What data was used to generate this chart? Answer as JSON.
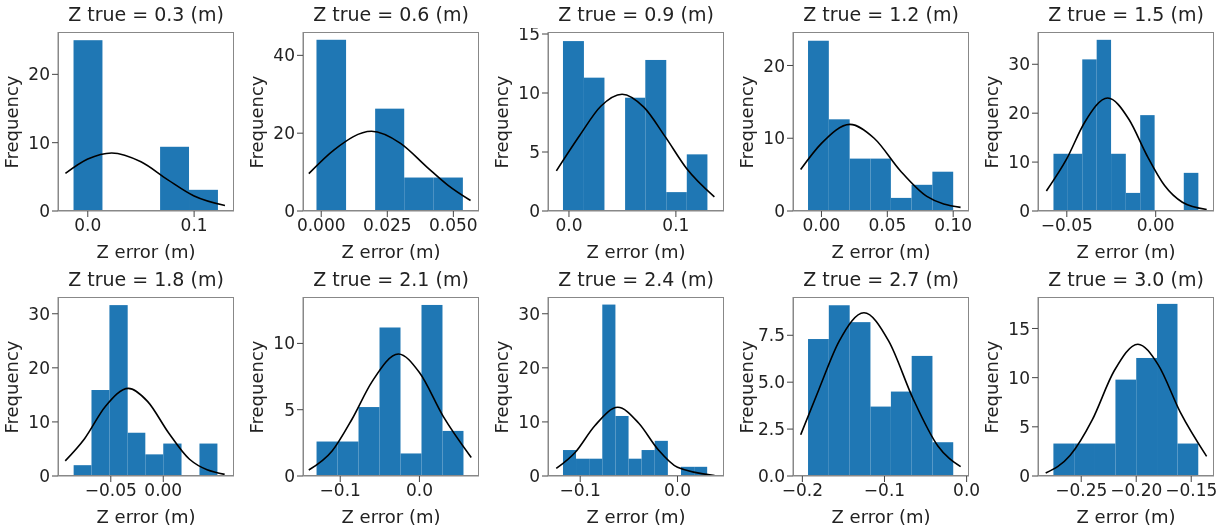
{
  "chart_data": [
    {
      "type": "histogram",
      "title": "Z true = 0.3 (m)",
      "xlabel": "Z error (m)",
      "ylabel": "Frequency",
      "color": "#1f77b4",
      "bins": [
        -0.0134,
        0.0138,
        0.041,
        0.068,
        0.0952,
        0.1224
      ],
      "values": [
        25,
        0,
        0,
        9.4,
        3.1
      ],
      "xlim": [
        -0.028,
        0.1375
      ],
      "ylim": [
        0,
        26.2
      ],
      "xticks": [
        {
          "value": 0,
          "label": "0.0"
        },
        {
          "value": 0.1,
          "label": "0.1"
        }
      ],
      "yticks": [
        0,
        10,
        20
      ],
      "series": [
        {
          "type": "line",
          "color": "#000000",
          "x": [
            -0.021,
            0,
            0.0225,
            0.05,
            0.075,
            0.1,
            0.129
          ],
          "values": [
            5.5,
            7.6,
            8.5,
            7.2,
            4.6,
            2.2,
            0.8
          ]
        }
      ]
    },
    {
      "type": "histogram",
      "title": "Z true = 0.6 (m)",
      "xlabel": "Z error (m)",
      "ylabel": "Frequency",
      "color": "#1f77b4",
      "bins": [
        -0.0018,
        0.0094,
        0.0204,
        0.0314,
        0.0424,
        0.0536
      ],
      "values": [
        44,
        0,
        26.3,
        8.6,
        8.6
      ],
      "xlim": [
        -0.0069,
        0.0597
      ],
      "ylim": [
        0,
        46
      ],
      "xticks": [
        {
          "value": 0,
          "label": "0.000"
        },
        {
          "value": 0.025,
          "label": "0.025"
        },
        {
          "value": 0.05,
          "label": "0.050"
        }
      ],
      "yticks": [
        0,
        20,
        40
      ],
      "series": [
        {
          "type": "line",
          "color": "#000000",
          "x": [
            -0.0047,
            0.005,
            0.019,
            0.03,
            0.04,
            0.048,
            0.0565
          ],
          "values": [
            9.6,
            15.8,
            20.5,
            17.4,
            11.3,
            6.6,
            2.7
          ]
        }
      ]
    },
    {
      "type": "histogram",
      "title": "Z true = 0.9 (m)",
      "xlabel": "Z error (m)",
      "ylabel": "Frequency",
      "color": "#1f77b4",
      "bins": [
        -0.0056,
        0.014,
        0.0332,
        0.0525,
        0.0714,
        0.091,
        0.1102,
        0.1295
      ],
      "values": [
        14.4,
        11.3,
        0,
        9.6,
        12.8,
        1.6,
        4.8
      ],
      "xlim": [
        -0.0196,
        0.145
      ],
      "ylim": [
        0,
        15.17
      ],
      "xticks": [
        {
          "value": 0,
          "label": "0.0"
        },
        {
          "value": 0.1,
          "label": "0.1"
        }
      ],
      "yticks": [
        0,
        5,
        10,
        15
      ],
      "series": [
        {
          "type": "line",
          "color": "#000000",
          "x": [
            -0.0118,
            0.01,
            0.03,
            0.0497,
            0.07,
            0.09,
            0.11,
            0.136
          ],
          "values": [
            3.4,
            6.4,
            8.9,
            9.9,
            8.8,
            6.3,
            3.6,
            1.2
          ]
        }
      ]
    },
    {
      "type": "histogram",
      "title": "Z true = 1.2 (m)",
      "xlabel": "Z error (m)",
      "ylabel": "Frequency",
      "color": "#1f77b4",
      "bins": [
        -0.0102,
        0.0056,
        0.0214,
        0.0372,
        0.0527,
        0.0684,
        0.0842,
        0.1
      ],
      "values": [
        23.4,
        12.6,
        7.2,
        7.2,
        1.8,
        3.6,
        5.4
      ],
      "xlim": [
        -0.0216,
        0.112
      ],
      "ylim": [
        0,
        24.6
      ],
      "xticks": [
        {
          "value": 0,
          "label": "0.00"
        },
        {
          "value": 0.05,
          "label": "0.05"
        },
        {
          "value": 0.1,
          "label": "0.10"
        }
      ],
      "yticks": [
        0,
        10,
        20
      ],
      "series": [
        {
          "type": "line",
          "color": "#000000",
          "x": [
            -0.0158,
            0,
            0.0216,
            0.04,
            0.06,
            0.08,
            0.1056
          ],
          "values": [
            5.7,
            9.3,
            11.9,
            10,
            5.5,
            2,
            0.5
          ]
        }
      ]
    },
    {
      "type": "histogram",
      "title": "Z true = 1.5 (m)",
      "xlabel": "Z error (m)",
      "ylabel": "Frequency",
      "color": "#1f77b4",
      "bins": [
        -0.0575,
        -0.0494,
        -0.0413,
        -0.0332,
        -0.0251,
        -0.0168,
        -0.0087,
        -0.0006,
        0.0075,
        0.0158,
        0.024
      ],
      "values": [
        11.7,
        11.7,
        31,
        35,
        11.7,
        3.7,
        19.6,
        0,
        0,
        7.8
      ],
      "xlim": [
        -0.0662,
        0.0328
      ],
      "ylim": [
        0,
        36.6
      ],
      "xticks": [
        {
          "value": -0.05,
          "label": "−0.05"
        },
        {
          "value": 0,
          "label": "0.00"
        }
      ],
      "yticks": [
        0,
        10,
        20,
        30
      ],
      "series": [
        {
          "type": "line",
          "color": "#000000",
          "x": [
            -0.0615,
            -0.05,
            -0.04,
            -0.027,
            -0.015,
            -0.005,
            0.005,
            0.015,
            0.0287
          ],
          "values": [
            4.1,
            10.7,
            18.1,
            23.1,
            18.7,
            11.4,
            5.2,
            1.8,
            0.3
          ]
        }
      ]
    },
    {
      "type": "histogram",
      "title": "Z true = 1.8 (m)",
      "xlabel": "Z error (m)",
      "ylabel": "Frequency",
      "color": "#1f77b4",
      "bins": [
        -0.0854,
        -0.0684,
        -0.0513,
        -0.0339,
        -0.0171,
        0,
        0.0174,
        0.0345,
        0.0516
      ],
      "values": [
        2,
        15.9,
        31.6,
        8,
        4,
        6,
        0,
        6
      ],
      "xlim": [
        -0.1003,
        0.0674
      ],
      "ylim": [
        0,
        33.1
      ],
      "xticks": [
        {
          "value": -0.05,
          "label": "−0.05"
        },
        {
          "value": 0,
          "label": "0.00"
        }
      ],
      "yticks": [
        0,
        10,
        20,
        30
      ],
      "series": [
        {
          "type": "line",
          "color": "#000000",
          "x": [
            -0.0934,
            -0.075,
            -0.055,
            -0.0332,
            -0.015,
            0.005,
            0.025,
            0.0585
          ],
          "values": [
            2.8,
            6.9,
            12.9,
            16.2,
            13.8,
            8,
            3.1,
            0.3
          ]
        }
      ]
    },
    {
      "type": "histogram",
      "title": "Z true = 2.1 (m)",
      "xlabel": "Z error (m)",
      "ylabel": "Frequency",
      "color": "#1f77b4",
      "bins": [
        -0.1299,
        -0.1034,
        -0.0769,
        -0.0504,
        -0.0239,
        0.0026,
        0.0291,
        0.0556
      ],
      "values": [
        2.6,
        2.6,
        5.2,
        11.2,
        1.7,
        12.9,
        3.4
      ],
      "xlim": [
        -0.147,
        0.0752
      ],
      "ylim": [
        0,
        13.5
      ],
      "xticks": [
        {
          "value": -0.1,
          "label": "−0.1"
        },
        {
          "value": 0,
          "label": "0.0"
        }
      ],
      "yticks": [
        0,
        5,
        10
      ],
      "series": [
        {
          "type": "line",
          "color": "#000000",
          "x": [
            -0.1397,
            -0.11,
            -0.085,
            -0.06,
            -0.0265,
            0,
            0.03,
            0.0654
          ],
          "values": [
            0.45,
            1.9,
            4.3,
            7.1,
            9.2,
            7.8,
            4.5,
            1.4
          ]
        }
      ]
    },
    {
      "type": "histogram",
      "title": "Z true = 2.4 (m)",
      "xlabel": "Z error (m)",
      "ylabel": "Frequency",
      "color": "#1f77b4",
      "bins": [
        -0.1177,
        -0.1043,
        -0.0908,
        -0.0773,
        -0.0638,
        -0.0503,
        -0.0369,
        -0.0234,
        -0.0099,
        0.0036,
        0.0171,
        0.0305
      ],
      "values": [
        4.8,
        3.2,
        3.2,
        31.7,
        11.1,
        3.2,
        4.8,
        6.5,
        0,
        1.7,
        1.7
      ],
      "xlim": [
        -0.1331,
        0.0478
      ],
      "ylim": [
        0,
        33.1
      ],
      "xticks": [
        {
          "value": -0.1,
          "label": "−0.1"
        },
        {
          "value": 0,
          "label": "0.0"
        }
      ],
      "yticks": [
        0,
        10,
        20,
        30
      ],
      "series": [
        {
          "type": "line",
          "color": "#000000",
          "x": [
            -0.1246,
            -0.105,
            -0.085,
            -0.0614,
            -0.04,
            -0.02,
            0,
            0.0382
          ],
          "values": [
            1.4,
            4.4,
            9.3,
            12.7,
            9.8,
            4.9,
            1.6,
            0.1
          ]
        }
      ]
    },
    {
      "type": "histogram",
      "title": "Z true = 2.7 (m)",
      "xlabel": "Z error (m)",
      "ylabel": "Frequency",
      "color": "#1f77b4",
      "bins": [
        -0.1931,
        -0.1678,
        -0.1424,
        -0.1171,
        -0.0922,
        -0.0669,
        -0.0416,
        -0.0163
      ],
      "values": [
        7.3,
        9.1,
        8.2,
        3.7,
        4.5,
        6.4,
        1.8
      ],
      "xlim": [
        -0.2114,
        0.0029
      ],
      "ylim": [
        0,
        9.54
      ],
      "xticks": [
        {
          "value": -0.2,
          "label": "−0.2"
        },
        {
          "value": -0.1,
          "label": "−0.1"
        },
        {
          "value": 0,
          "label": "0.0"
        }
      ],
      "yticks": [
        {
          "value": 0,
          "label": "0.0"
        },
        {
          "value": 2.5,
          "label": "2.5"
        },
        {
          "value": 5,
          "label": "5.0"
        },
        {
          "value": 7.5,
          "label": "7.5"
        }
      ],
      "series": [
        {
          "type": "line",
          "color": "#000000",
          "x": [
            -0.202,
            -0.18,
            -0.155,
            -0.125,
            -0.095,
            -0.065,
            -0.035,
            -0.0073
          ],
          "values": [
            2.2,
            4.6,
            7.2,
            8.7,
            7.2,
            4.1,
            1.6,
            0.5
          ]
        }
      ]
    },
    {
      "type": "histogram",
      "title": "Z true = 3.0 (m)",
      "xlabel": "Z error (m)",
      "ylabel": "Frequency",
      "color": "#1f77b4",
      "bins": [
        -0.2753,
        -0.2564,
        -0.2375,
        -0.2189,
        -0.2,
        -0.1811,
        -0.1625,
        -0.1436
      ],
      "values": [
        3.3,
        3.3,
        3.3,
        9.8,
        12,
        17.5,
        3.3
      ],
      "xlim": [
        -0.2893,
        -0.1293
      ],
      "ylim": [
        0,
        18.2
      ],
      "xticks": [
        {
          "value": -0.25,
          "label": "−0.25"
        },
        {
          "value": -0.2,
          "label": "−0.20"
        },
        {
          "value": -0.15,
          "label": "−0.15"
        }
      ],
      "yticks": [
        0,
        5,
        10,
        15
      ],
      "series": [
        {
          "type": "line",
          "color": "#000000",
          "x": [
            -0.2823,
            -0.26,
            -0.24,
            -0.22,
            -0.1985,
            -0.18,
            -0.16,
            -0.136
          ],
          "values": [
            0.3,
            2.1,
            5.7,
            10.7,
            13.4,
            11.3,
            6.5,
            2
          ]
        }
      ]
    }
  ]
}
